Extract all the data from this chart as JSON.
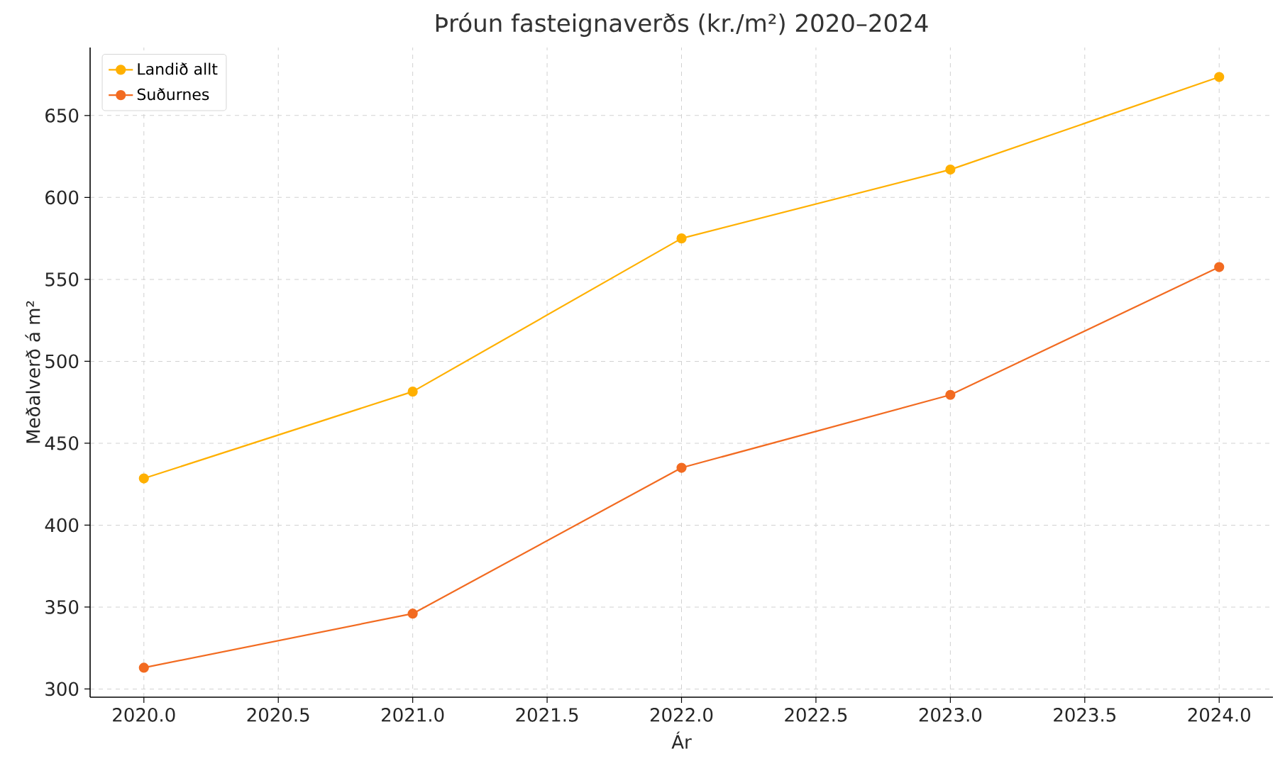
{
  "chart_data": {
    "type": "line",
    "title": "Þróun fasteignaverðs (kr./m²) 2020–2024",
    "xlabel": "Ár",
    "ylabel": "Meðalverð á m²",
    "x": [
      2020,
      2021,
      2022,
      2023,
      2024
    ],
    "series": [
      {
        "name": "Landið allt",
        "color": "#ffb000",
        "values": [
          428.5,
          481.5,
          575,
          617,
          673.5
        ]
      },
      {
        "name": "Suðurnes",
        "color": "#f26b21",
        "values": [
          313,
          346,
          435,
          479.5,
          557.5
        ]
      }
    ],
    "xlim": [
      2019.8,
      2024.2
    ],
    "ylim": [
      295,
      691.5
    ],
    "xticks": [
      {
        "value": 2020,
        "label": "2020.0"
      },
      {
        "value": 2020.5,
        "label": "2020.5"
      },
      {
        "value": 2021,
        "label": "2021.0"
      },
      {
        "value": 2021.5,
        "label": "2021.5"
      },
      {
        "value": 2022,
        "label": "2022.0"
      },
      {
        "value": 2022.5,
        "label": "2022.5"
      },
      {
        "value": 2023,
        "label": "2023.0"
      },
      {
        "value": 2023.5,
        "label": "2023.5"
      },
      {
        "value": 2024,
        "label": "2024.0"
      }
    ],
    "yticks": [
      300,
      350,
      400,
      450,
      500,
      550,
      600,
      650
    ],
    "grid": true,
    "legend": "top left",
    "marker": "circle",
    "line_style": "solid"
  }
}
